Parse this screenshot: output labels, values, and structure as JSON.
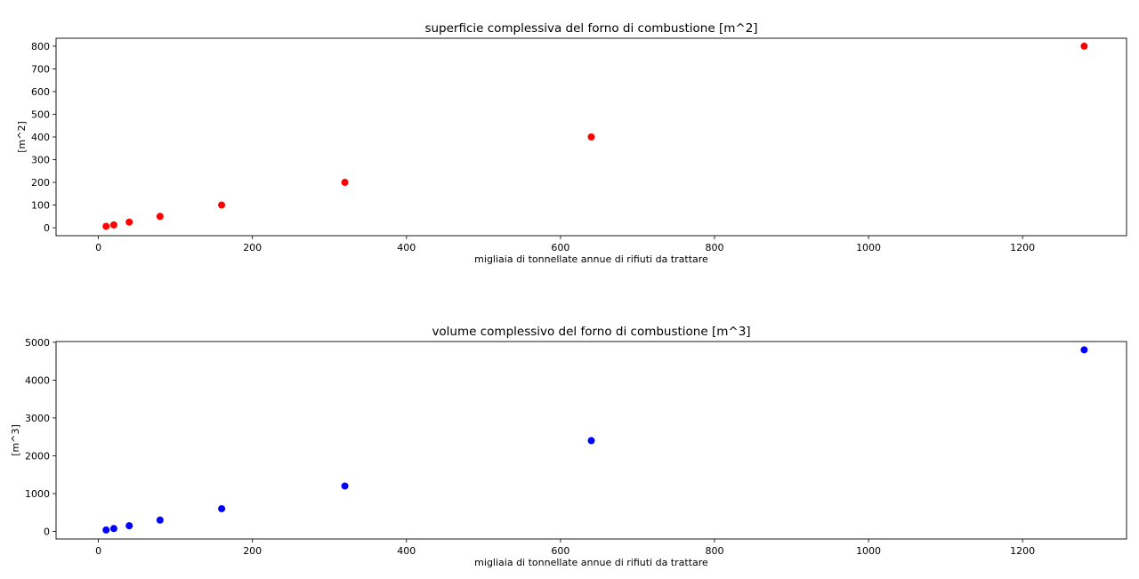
{
  "chart_data": [
    {
      "type": "scatter",
      "title": "superficie complessiva del forno di combustione [m^2]",
      "xlabel": "migliaia di tonnellate annue di rifiuti da trattare",
      "ylabel": "[m^2]",
      "xlim": [
        -55,
        1335
      ],
      "ylim": [
        -35,
        835
      ],
      "xticks": [
        0,
        200,
        400,
        600,
        800,
        1000,
        1200
      ],
      "yticks": [
        0,
        100,
        200,
        300,
        400,
        500,
        600,
        700,
        800
      ],
      "grid": false,
      "color": "#ff0000",
      "series": [
        {
          "x": [
            10,
            20,
            40,
            80,
            160,
            320,
            640,
            1280
          ],
          "y": [
            6.25,
            12.5,
            25,
            50,
            100,
            200,
            400,
            800
          ]
        }
      ]
    },
    {
      "type": "scatter",
      "title": "volume complessivo del forno di combustione [m^3]",
      "xlabel": "migliaia di tonnellate annue di rifiuti da trattare",
      "ylabel": "[m^3]",
      "xlim": [
        -55,
        1335
      ],
      "ylim": [
        -200,
        5020
      ],
      "xticks": [
        0,
        200,
        400,
        600,
        800,
        1000,
        1200
      ],
      "yticks": [
        0,
        1000,
        2000,
        3000,
        4000,
        5000
      ],
      "grid": false,
      "color": "#0000ff",
      "series": [
        {
          "x": [
            10,
            20,
            40,
            80,
            160,
            320,
            640,
            1280
          ],
          "y": [
            37.5,
            75,
            150,
            300,
            600,
            1200,
            2400,
            4800
          ]
        }
      ]
    }
  ]
}
